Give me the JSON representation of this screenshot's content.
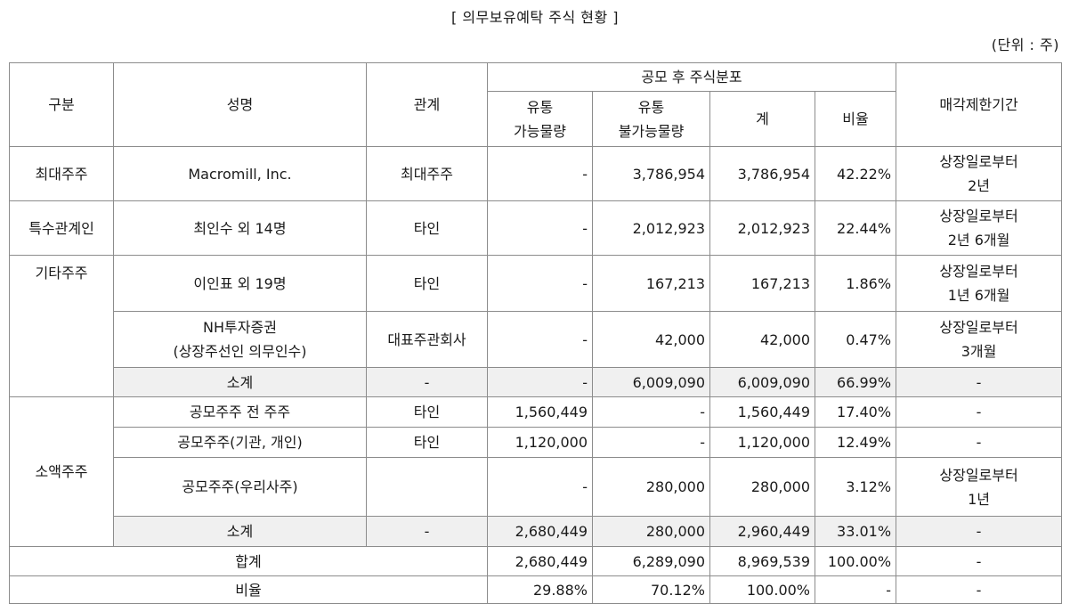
{
  "title": "[ 의무보유예탁 주식 현황 ]",
  "unit": "(단위 : 주)",
  "header": {
    "category": "구분",
    "name": "성명",
    "relation": "관계",
    "group": "공모 후 주식분포",
    "tradable": [
      "유통",
      "가능물량"
    ],
    "non_tradable": [
      "유통",
      "불가능물량"
    ],
    "total": "계",
    "ratio": "비율",
    "lockup": "매각제한기간"
  },
  "rows": [
    {
      "category": "최대주주",
      "name": "Macromill, Inc.",
      "relation": "최대주주",
      "tradable": "-",
      "non_tradable": "3,786,954",
      "total": "3,786,954",
      "ratio": "42.22%",
      "lockup": [
        "상장일로부터",
        "2년"
      ]
    },
    {
      "category": "특수관계인",
      "name": "최인수 외 14명",
      "relation": "타인",
      "tradable": "-",
      "non_tradable": "2,012,923",
      "total": "2,012,923",
      "ratio": "22.44%",
      "lockup": [
        "상장일로부터",
        "2년 6개월"
      ]
    },
    {
      "category": "기타주주",
      "name": "이인표 외 19명",
      "relation": "타인",
      "tradable": "-",
      "non_tradable": "167,213",
      "total": "167,213",
      "ratio": "1.86%",
      "lockup": [
        "상장일로부터",
        "1년 6개월"
      ]
    },
    {
      "name": [
        "NH투자증권",
        "(상장주선인 의무인수)"
      ],
      "relation": "대표주관회사",
      "tradable": "-",
      "non_tradable": "42,000",
      "total": "42,000",
      "ratio": "0.47%",
      "lockup": [
        "상장일로부터",
        "3개월"
      ]
    },
    {
      "name": "소계",
      "relation": "-",
      "tradable": "-",
      "non_tradable": "6,009,090",
      "total": "6,009,090",
      "ratio": "66.99%",
      "lockup": "-"
    },
    {
      "category": "소액주주",
      "name": "공모주주 전 주주",
      "relation": "타인",
      "tradable": "1,560,449",
      "non_tradable": "-",
      "total": "1,560,449",
      "ratio": "17.40%",
      "lockup": "-"
    },
    {
      "name": "공모주주(기관, 개인)",
      "relation": "타인",
      "tradable": "1,120,000",
      "non_tradable": "-",
      "total": "1,120,000",
      "ratio": "12.49%",
      "lockup": "-"
    },
    {
      "name": "공모주주(우리사주)",
      "relation": "",
      "tradable": "-",
      "non_tradable": "280,000",
      "total": "280,000",
      "ratio": "3.12%",
      "lockup": [
        "상장일로부터",
        "1년"
      ]
    },
    {
      "name": "소계",
      "relation": "-",
      "tradable": "2,680,449",
      "non_tradable": "280,000",
      "total": "2,960,449",
      "ratio": "33.01%",
      "lockup": "-"
    },
    {
      "name": "합계",
      "tradable": "2,680,449",
      "non_tradable": "6,289,090",
      "total": "8,969,539",
      "ratio": "100.00%",
      "lockup": "-"
    },
    {
      "name": "비율",
      "tradable": "29.88%",
      "non_tradable": "70.12%",
      "total": "100.00%",
      "ratio": "-",
      "lockup": "-"
    }
  ]
}
